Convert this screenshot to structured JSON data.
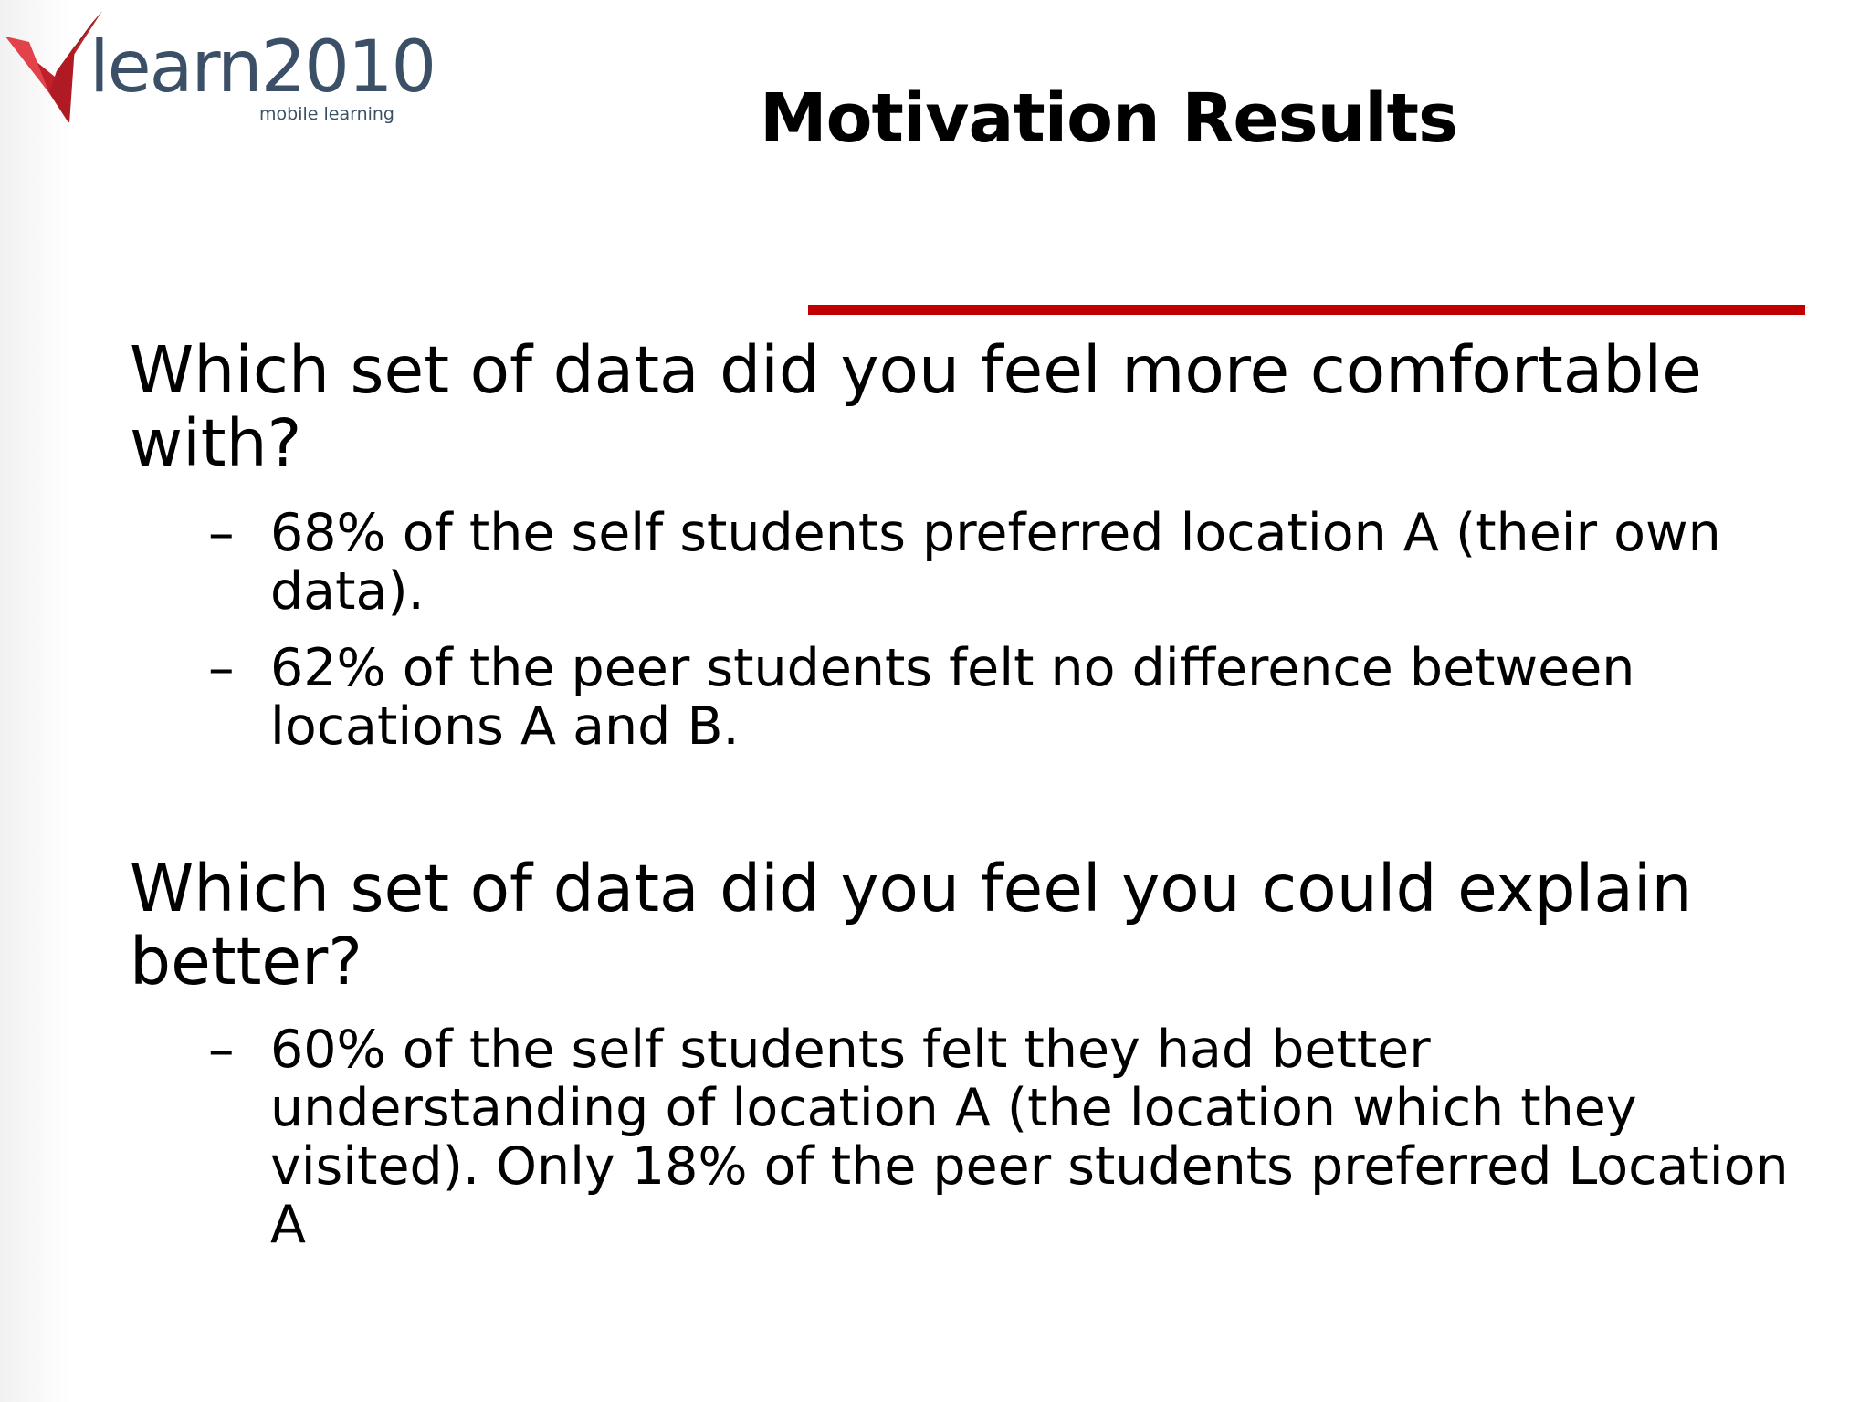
{
  "logo": {
    "wordmark": "learn2010",
    "tagline": "mobile learning",
    "colors": {
      "text": "#3b4f66",
      "mark_red": "#c0202a"
    }
  },
  "slide": {
    "title": "Motivation Results",
    "accent_color": "#c00000",
    "sections": [
      {
        "question": "Which set of data did you feel more comfortable with?",
        "bullets": [
          {
            "marker": "–",
            "text": "68% of the self students preferred location A (their own data)."
          },
          {
            "marker": "–",
            "text": "62% of the peer students felt no difference between locations A and B."
          }
        ]
      },
      {
        "question": "Which set of data did you feel you could explain better?",
        "bullets": [
          {
            "marker": "–",
            "text": "60% of the self students felt they had better understanding of location A (the location which they visited).  Only 18% of the peer students preferred Location A"
          }
        ]
      }
    ]
  }
}
